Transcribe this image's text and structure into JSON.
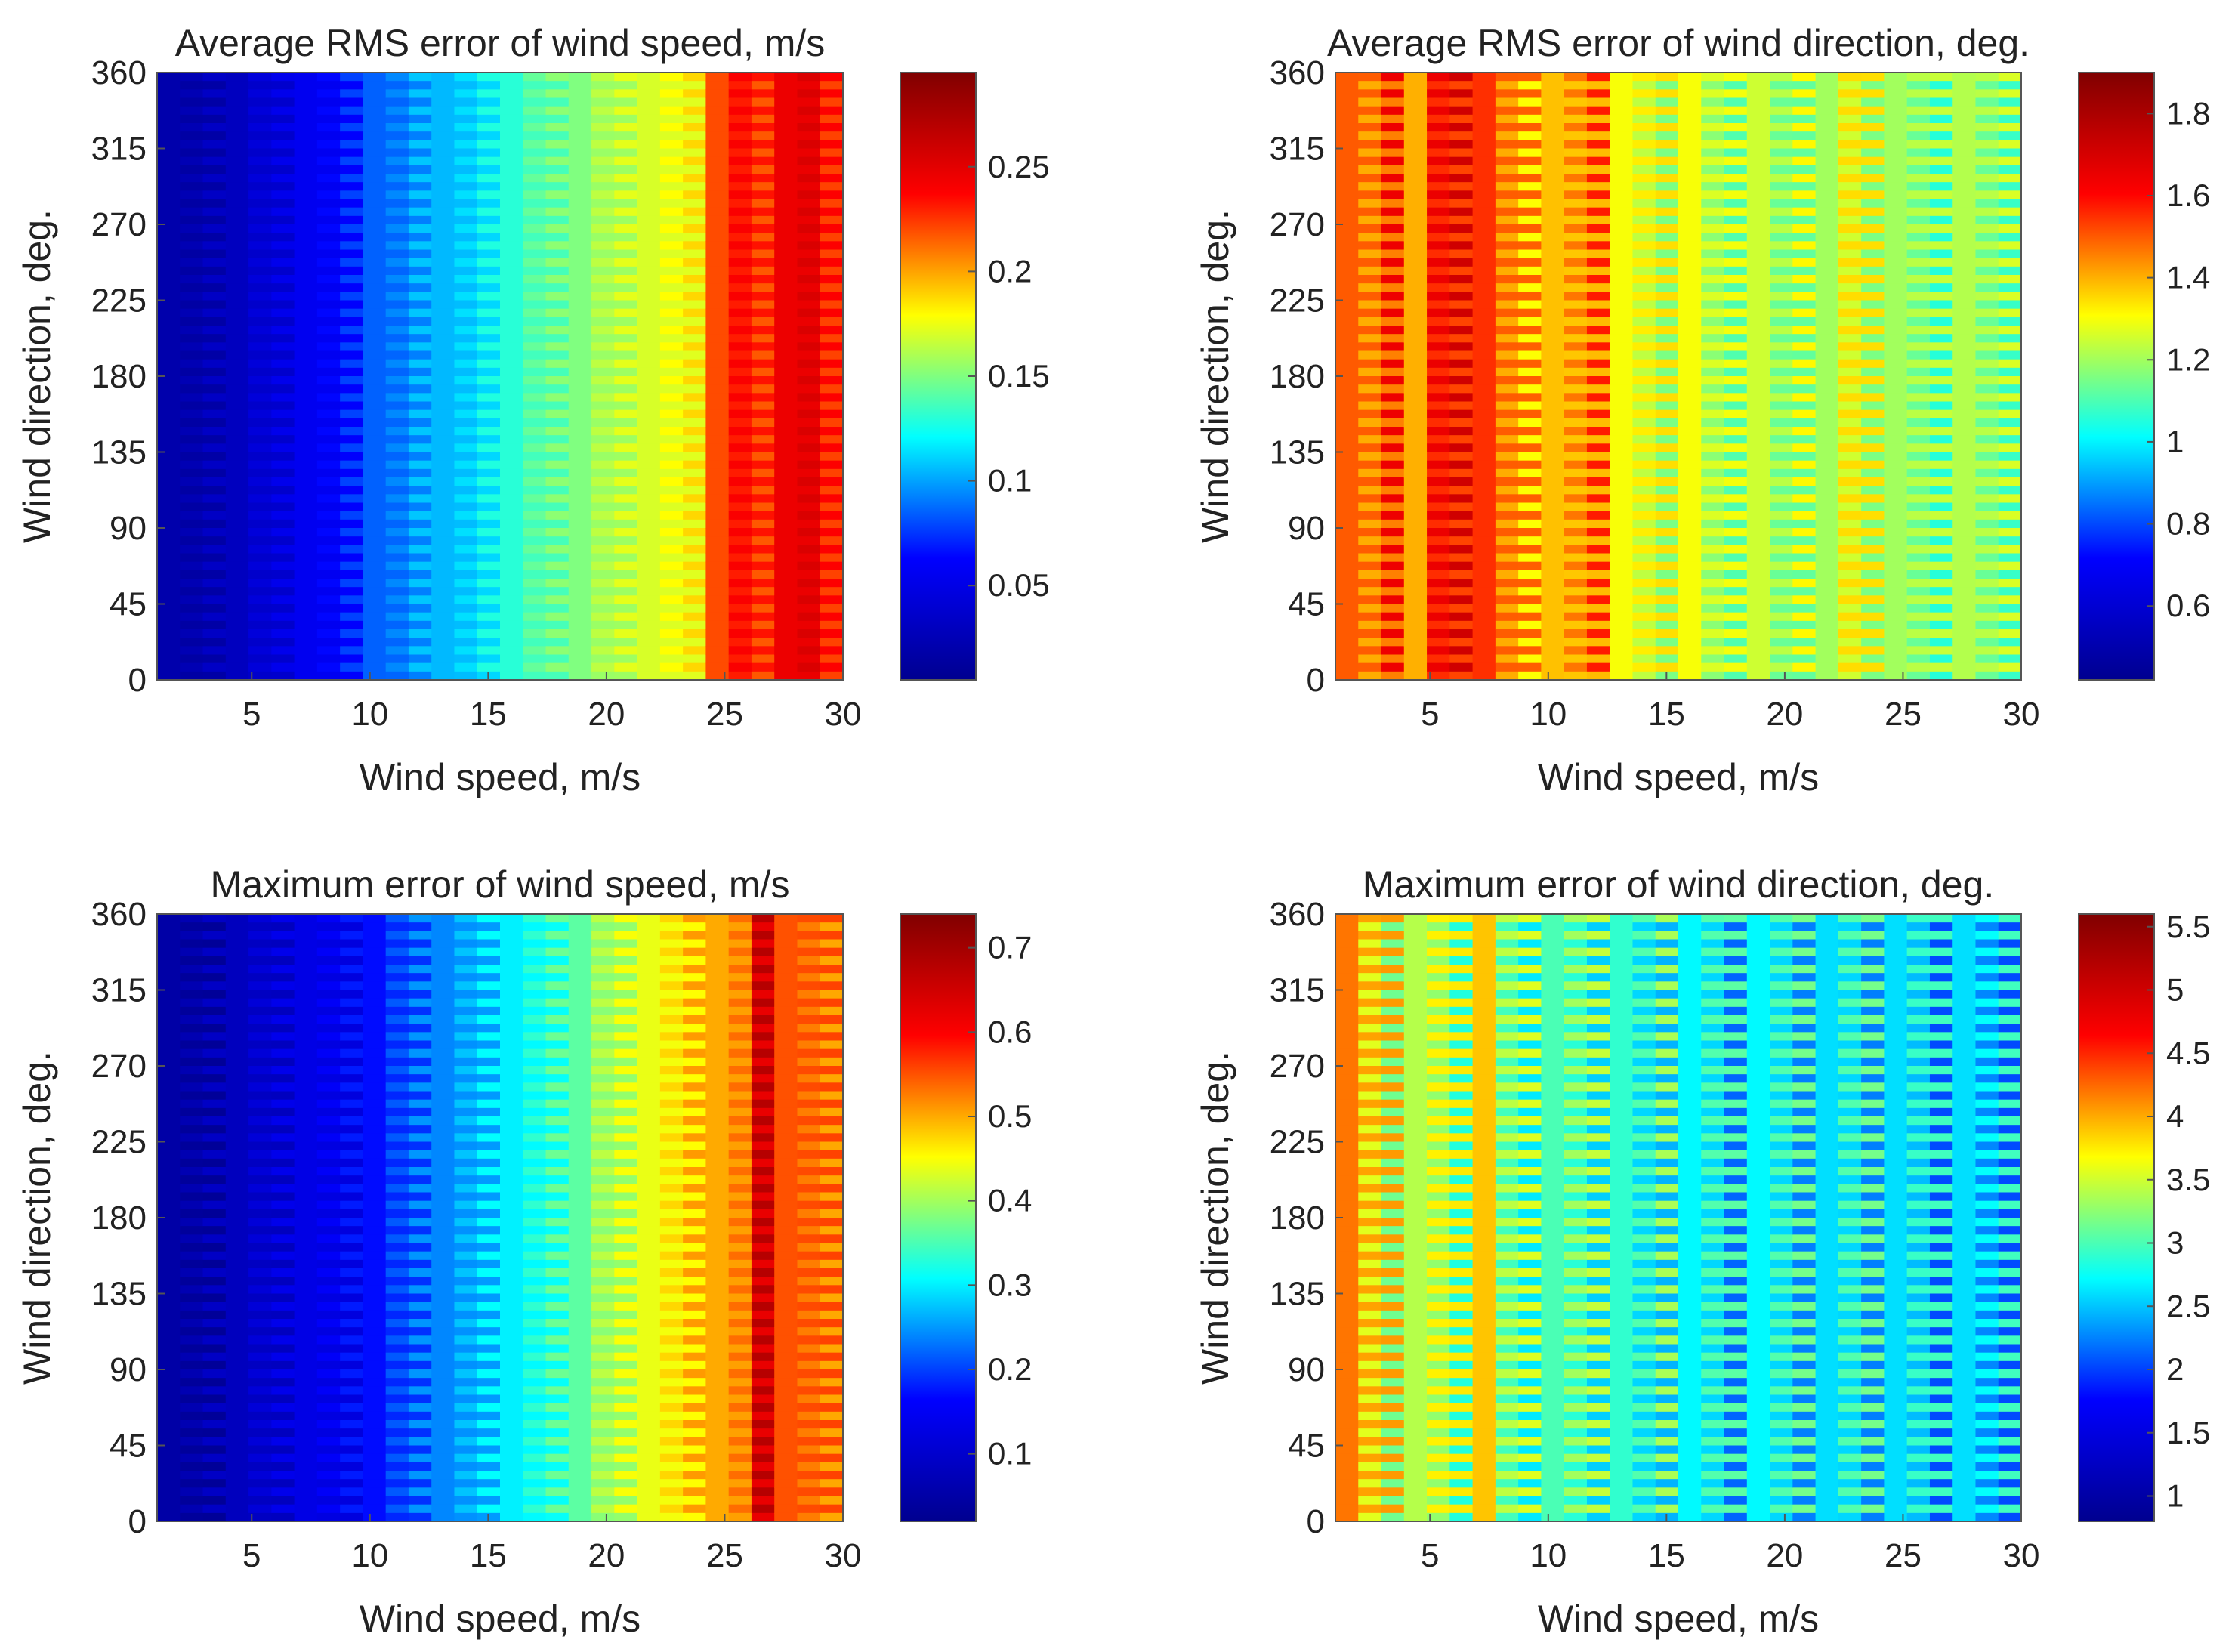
{
  "figure": {
    "layout": "2x2 grid of heatmaps, each with a vertical jet colorbar to its right"
  },
  "colormap": "jet",
  "colormap_stops": [
    "#00008f",
    "#0000ff",
    "#00ffff",
    "#ffff00",
    "#ff0000",
    "#800000"
  ],
  "chart_data": [
    {
      "type": "heatmap",
      "title": "Average RMS error of wind speed, m/s",
      "xlabel": "Wind speed, m/s",
      "ylabel": "Wind direction, deg.",
      "xlim": [
        1,
        30
      ],
      "ylim": [
        0,
        360
      ],
      "xticks": [
        5,
        10,
        15,
        20,
        25,
        30
      ],
      "yticks": [
        0,
        45,
        90,
        135,
        180,
        225,
        270,
        315,
        360
      ],
      "clim": [
        0.005,
        0.295
      ],
      "cticks": [
        0.05,
        0.1,
        0.15,
        0.2,
        0.25
      ],
      "cticklabels": [
        "0.05",
        "0.1",
        "0.15",
        "0.2",
        "0.25"
      ],
      "x": [
        1,
        2,
        3,
        4,
        5,
        6,
        7,
        8,
        9,
        10,
        11,
        12,
        13,
        14,
        15,
        16,
        17,
        18,
        19,
        20,
        21,
        22,
        23,
        24,
        25,
        26,
        27,
        28,
        29,
        30
      ],
      "values": [
        0.02,
        0.02,
        0.025,
        0.03,
        0.04,
        0.045,
        0.055,
        0.06,
        0.07,
        0.085,
        0.09,
        0.1,
        0.105,
        0.11,
        0.12,
        0.13,
        0.14,
        0.145,
        0.15,
        0.16,
        0.165,
        0.17,
        0.175,
        0.18,
        0.22,
        0.235,
        0.225,
        0.245,
        0.25,
        0.23
      ],
      "direction_ripple": 0.35
    },
    {
      "type": "heatmap",
      "title": "Average RMS error of wind direction, deg.",
      "xlabel": "Wind speed, m/s",
      "ylabel": "Wind direction, deg.",
      "xlim": [
        1,
        30
      ],
      "ylim": [
        0,
        360
      ],
      "xticks": [
        5,
        10,
        15,
        20,
        25,
        30
      ],
      "yticks": [
        0,
        45,
        90,
        135,
        180,
        225,
        270,
        315,
        360
      ],
      "clim": [
        0.42,
        1.9
      ],
      "cticks": [
        0.6,
        0.8,
        1,
        1.2,
        1.4,
        1.6,
        1.8
      ],
      "cticklabels": [
        "0.6",
        "0.8",
        "1",
        "1.2",
        "1.4",
        "1.6",
        "1.8"
      ],
      "x": [
        1,
        2,
        3,
        4,
        5,
        6,
        7,
        8,
        9,
        10,
        11,
        12,
        13,
        14,
        15,
        16,
        17,
        18,
        19,
        20,
        21,
        22,
        23,
        24,
        25,
        26,
        27,
        28,
        29,
        30
      ],
      "values": [
        1.5,
        1.45,
        1.55,
        1.4,
        1.6,
        1.62,
        1.55,
        1.45,
        1.4,
        1.38,
        1.42,
        1.48,
        1.3,
        1.28,
        1.25,
        1.3,
        1.22,
        1.2,
        1.25,
        1.18,
        1.22,
        1.2,
        1.3,
        1.25,
        1.2,
        1.18,
        1.15,
        1.22,
        1.18,
        1.17
      ],
      "direction_ripple": 0.8
    },
    {
      "type": "heatmap",
      "title": "Maximum error of wind speed, m/s",
      "xlabel": "Wind speed, m/s",
      "ylabel": "Wind direction, deg.",
      "xlim": [
        1,
        30
      ],
      "ylim": [
        0,
        360
      ],
      "xticks": [
        5,
        10,
        15,
        20,
        25,
        30
      ],
      "yticks": [
        0,
        45,
        90,
        135,
        180,
        225,
        270,
        315,
        360
      ],
      "clim": [
        0.02,
        0.74
      ],
      "cticks": [
        0.1,
        0.2,
        0.3,
        0.4,
        0.5,
        0.6,
        0.7
      ],
      "cticklabels": [
        "0.1",
        "0.2",
        "0.3",
        "0.4",
        "0.5",
        "0.6",
        "0.7"
      ],
      "x": [
        1,
        2,
        3,
        4,
        5,
        6,
        7,
        8,
        9,
        10,
        11,
        12,
        13,
        14,
        15,
        16,
        17,
        18,
        19,
        20,
        21,
        22,
        23,
        24,
        25,
        26,
        27,
        28,
        29,
        30
      ],
      "values": [
        0.05,
        0.05,
        0.06,
        0.08,
        0.1,
        0.11,
        0.13,
        0.14,
        0.15,
        0.17,
        0.2,
        0.22,
        0.24,
        0.26,
        0.28,
        0.3,
        0.32,
        0.34,
        0.36,
        0.4,
        0.42,
        0.44,
        0.46,
        0.48,
        0.5,
        0.52,
        0.65,
        0.55,
        0.54,
        0.53
      ],
      "direction_ripple": 0.5
    },
    {
      "type": "heatmap",
      "title": "Maximum error of wind direction, deg.",
      "xlabel": "Wind speed, m/s",
      "ylabel": "Wind direction, deg.",
      "xlim": [
        1,
        30
      ],
      "ylim": [
        0,
        360
      ],
      "xticks": [
        5,
        10,
        15,
        20,
        25,
        30
      ],
      "yticks": [
        0,
        45,
        90,
        135,
        180,
        225,
        270,
        315,
        360
      ],
      "clim": [
        0.8,
        5.6
      ],
      "cticks": [
        1,
        1.5,
        2,
        2.5,
        3,
        3.5,
        4,
        4.5,
        5,
        5.5
      ],
      "cticklabels": [
        "1",
        "1.5",
        "2",
        "2.5",
        "3",
        "3.5",
        "4",
        "4.5",
        "5",
        "5.5"
      ],
      "x": [
        1,
        2,
        3,
        4,
        5,
        6,
        7,
        8,
        9,
        10,
        11,
        12,
        13,
        14,
        15,
        16,
        17,
        18,
        19,
        20,
        21,
        22,
        23,
        24,
        25,
        26,
        27,
        28,
        29,
        30
      ],
      "values": [
        4.2,
        3.8,
        3.6,
        3.4,
        3.5,
        3.3,
        3.9,
        3.2,
        3.1,
        3.0,
        3.1,
        3.0,
        2.9,
        2.8,
        2.9,
        2.7,
        2.8,
        2.6,
        2.7,
        2.8,
        2.7,
        2.6,
        2.8,
        2.7,
        2.6,
        2.7,
        2.5,
        2.6,
        2.5,
        2.5
      ],
      "direction_ripple": 1.2
    }
  ]
}
